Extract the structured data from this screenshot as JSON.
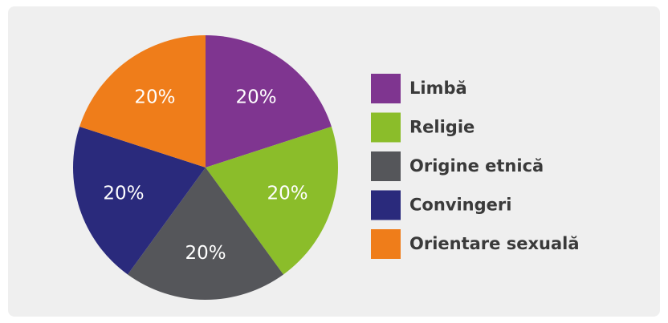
{
  "chart_data": {
    "type": "pie",
    "categories": [
      "Limbă",
      "Religie",
      "Origine etnică",
      "Convingeri",
      "Orientare sexuală"
    ],
    "values": [
      20,
      20,
      20,
      20,
      20
    ],
    "value_labels": [
      "20%",
      "20%",
      "20%",
      "20%",
      "20%"
    ],
    "colors": [
      "#7f3590",
      "#8bbd2a",
      "#55565a",
      "#2a2a7c",
      "#ef7d1a"
    ],
    "legend": "right"
  }
}
